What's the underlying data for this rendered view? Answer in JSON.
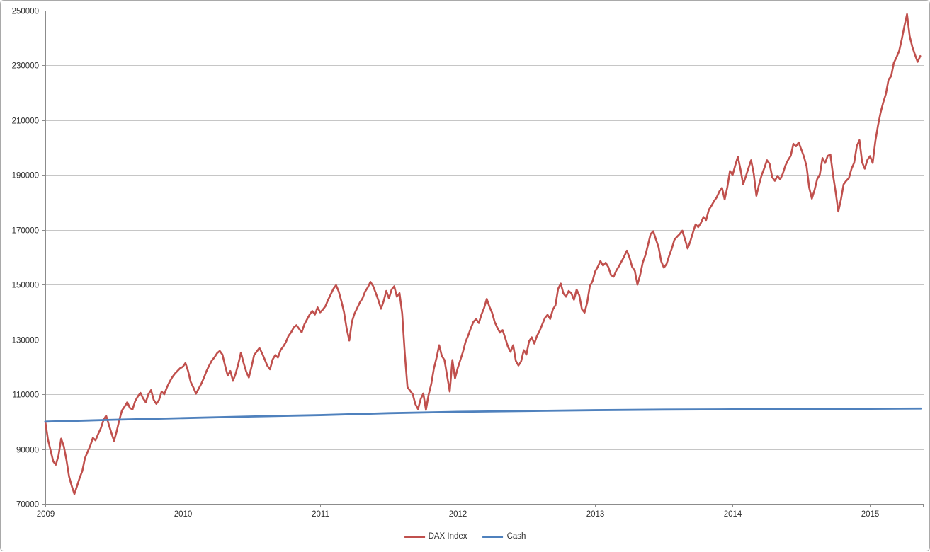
{
  "window": {
    "background": "#ffffff",
    "frame_border_color": "#a9a9a9"
  },
  "legend": {
    "position": "bottom-center",
    "items": [
      {
        "label": "DAX Index",
        "color": "#c0504d"
      },
      {
        "label": "Cash",
        "color": "#4f81bd"
      }
    ]
  },
  "chart_data": {
    "type": "line",
    "title": "",
    "xlabel": "",
    "ylabel": "",
    "grid": "horizontal",
    "legend_position": "bottom-center",
    "style": {
      "gridline_color": "#c6c6c6",
      "axis_color": "#8c8c8c",
      "label_color": "#2f2f2f",
      "background": "#ffffff"
    },
    "x_axis": {
      "min": 2009,
      "max": 2015.39,
      "tick_values": [
        2009,
        2010,
        2011,
        2012,
        2013,
        2014,
        2015
      ],
      "tick_labels": [
        "2009",
        "2010",
        "2011",
        "2012",
        "2013",
        "2014",
        "2015"
      ]
    },
    "y_axis": {
      "min": 70000,
      "max": 250000,
      "tick_values": [
        70000,
        90000,
        110000,
        130000,
        150000,
        170000,
        190000,
        210000,
        230000,
        250000
      ],
      "tick_labels": [
        "70000",
        "90000",
        "110000",
        "130000",
        "150000",
        "170000",
        "190000",
        "210000",
        "230000",
        "250000"
      ]
    },
    "series": [
      {
        "name": "DAX Index",
        "color": "#c0504d",
        "stroke_width": 2.6,
        "sampling": "weekly",
        "x_start": 2009.0,
        "x_step": 0.01923077,
        "values": [
          100000,
          93500,
          89500,
          85500,
          84300,
          87700,
          93800,
          91000,
          86000,
          79900,
          76500,
          73600,
          76500,
          79500,
          82000,
          86700,
          89000,
          91200,
          94100,
          93200,
          95500,
          97600,
          100500,
          102200,
          99000,
          95900,
          93000,
          96500,
          100600,
          104100,
          105500,
          107100,
          105000,
          104500,
          107500,
          109200,
          110500,
          108500,
          107100,
          110000,
          111500,
          108000,
          106500,
          107900,
          111000,
          110000,
          112500,
          114500,
          116200,
          117500,
          118500,
          119500,
          120000,
          121400,
          118500,
          114500,
          112500,
          110200,
          112000,
          113800,
          116000,
          118500,
          120500,
          122300,
          123500,
          125000,
          125800,
          124500,
          120500,
          116800,
          118500,
          114900,
          117500,
          121000,
          125200,
          121500,
          118300,
          116100,
          120000,
          124300,
          125600,
          126900,
          125000,
          122700,
          120400,
          119100,
          122700,
          124300,
          123400,
          126100,
          127400,
          129000,
          131300,
          132600,
          134400,
          135200,
          133900,
          132600,
          135500,
          137300,
          139100,
          140400,
          139100,
          141700,
          139900,
          140900,
          142200,
          144500,
          146500,
          148500,
          149800,
          147500,
          144000,
          140000,
          134000,
          129600,
          136500,
          139500,
          141500,
          143500,
          145000,
          147500,
          149000,
          151000,
          149500,
          147000,
          144300,
          141200,
          144000,
          147700,
          145000,
          148200,
          149400,
          145600,
          146900,
          139600,
          124800,
          112600,
          111300,
          110000,
          106400,
          104600,
          108200,
          110300,
          104300,
          109800,
          113700,
          119400,
          123300,
          127900,
          124000,
          122500,
          116800,
          111000,
          122500,
          115800,
          119500,
          122500,
          125500,
          129200,
          131500,
          134200,
          136500,
          137400,
          136000,
          139100,
          141500,
          144800,
          142000,
          139800,
          136400,
          134300,
          132500,
          133400,
          130500,
          127400,
          125500,
          127900,
          122200,
          120500,
          122000,
          126100,
          124500,
          129300,
          130800,
          128500,
          131300,
          133100,
          135500,
          137800,
          139000,
          137500,
          140900,
          142500,
          148500,
          150400,
          146800,
          145600,
          147700,
          146900,
          144500,
          148200,
          146100,
          141000,
          139800,
          143500,
          149500,
          151200,
          154800,
          156500,
          158600,
          157000,
          158000,
          156400,
          153500,
          152900,
          155100,
          156700,
          158500,
          160300,
          162400,
          159900,
          156500,
          155100,
          150000,
          153400,
          158000,
          160700,
          164500,
          168500,
          169500,
          166500,
          163700,
          158500,
          156200,
          157500,
          160500,
          163200,
          166400,
          167500,
          168500,
          169700,
          166500,
          163200,
          165800,
          169000,
          172000,
          171000,
          172500,
          174700,
          173600,
          177300,
          178800,
          180500,
          181900,
          184000,
          185300,
          181100,
          185500,
          191500,
          190000,
          193500,
          196700,
          192000,
          186600,
          189500,
          192500,
          195400,
          190500,
          182400,
          186500,
          190000,
          192500,
          195400,
          194100,
          189200,
          187900,
          189700,
          188400,
          190500,
          193500,
          195500,
          197000,
          201400,
          200500,
          201900,
          199300,
          196700,
          193100,
          185300,
          181400,
          184500,
          188500,
          190200,
          196200,
          194400,
          197000,
          197500,
          190000,
          183700,
          176700,
          181100,
          186600,
          187900,
          188900,
          192300,
          194500,
          200600,
          202700,
          194700,
          192300,
          195500,
          196900,
          194400,
          202300,
          208000,
          212800,
          216500,
          219600,
          224800,
          226100,
          230900,
          232900,
          235200,
          239500,
          244300,
          248700,
          240700,
          236800,
          233900,
          231300,
          233400
        ]
      },
      {
        "name": "Cash",
        "color": "#4f81bd",
        "stroke_width": 2.8,
        "sampling": "anchors",
        "x": [
          2009.0,
          2009.5,
          2010.0,
          2010.5,
          2011.0,
          2011.5,
          2012.0,
          2012.5,
          2013.0,
          2013.5,
          2014.0,
          2014.5,
          2015.0,
          2015.37
        ],
        "y": [
          100000,
          100700,
          101300,
          101900,
          102400,
          103100,
          103600,
          103900,
          104200,
          104400,
          104500,
          104600,
          104700,
          104800
        ]
      }
    ]
  }
}
